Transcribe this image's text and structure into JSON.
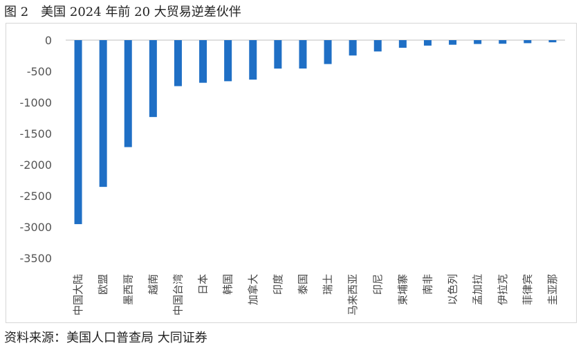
{
  "figure_title": "图 2　美国 2024 年前 20 大贸易逆差伙伴",
  "source_note": "资料来源：美国人口普查局  大同证券",
  "chart_data": {
    "type": "bar",
    "categories": [
      "中国大陆",
      "欧盟",
      "墨西哥",
      "越南",
      "中国台湾",
      "日本",
      "韩国",
      "加拿大",
      "印度",
      "泰国",
      "瑞士",
      "马来西亚",
      "印尼",
      "柬埔寨",
      "南非",
      "以色列",
      "孟加拉",
      "伊拉克",
      "菲律宾",
      "圭亚那"
    ],
    "values": [
      -2955,
      -2357,
      -1718,
      -1235,
      -739,
      -685,
      -660,
      -634,
      -457,
      -456,
      -384,
      -247,
      -182,
      -123,
      -88,
      -74,
      -62,
      -58,
      -49,
      -35
    ],
    "ylim": [
      -3500,
      0
    ],
    "yticks": [
      0,
      -500,
      -1000,
      -1500,
      -2000,
      -2500,
      -3000,
      -3500
    ],
    "ytick_labels": [
      "0",
      "-500",
      "-1000",
      "-1500",
      "-2000",
      "-2500",
      "-3000",
      "-3500"
    ],
    "bar_color": "#1f6fc5",
    "grid": false,
    "legend": "none",
    "title": "",
    "xlabel": "",
    "ylabel": ""
  }
}
